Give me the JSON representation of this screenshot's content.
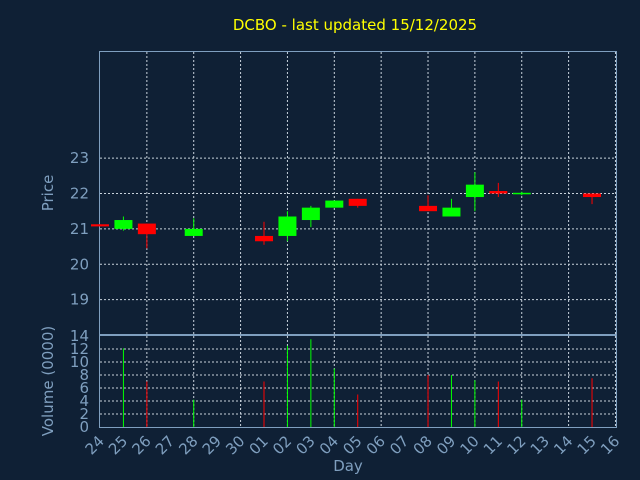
{
  "chart_data": [
    {
      "panel": "price",
      "type": "candlestick",
      "title": "DCBO - last updated 15/12/2025",
      "ylabel": "Price",
      "ylim": [
        18,
        26
      ],
      "yticks": [
        19,
        20,
        21,
        22,
        23
      ],
      "grid": true,
      "up_color": "#00ff00",
      "down_color": "#ff0000",
      "candles": [
        {
          "day": "24",
          "open": 21.13,
          "high": 21.13,
          "low": 21.07,
          "close": 21.07
        },
        {
          "day": "25",
          "open": 21.0,
          "high": 21.35,
          "low": 20.95,
          "close": 21.25
        },
        {
          "day": "26",
          "open": 21.15,
          "high": 21.15,
          "low": 20.45,
          "close": 20.85
        },
        {
          "day": "28",
          "open": 20.8,
          "high": 21.3,
          "low": 20.8,
          "close": 21.0
        },
        {
          "day": "01",
          "open": 20.8,
          "high": 21.2,
          "low": 20.55,
          "close": 20.65
        },
        {
          "day": "02",
          "open": 20.8,
          "high": 21.5,
          "low": 20.65,
          "close": 21.35
        },
        {
          "day": "03",
          "open": 21.25,
          "high": 21.65,
          "low": 21.05,
          "close": 21.6
        },
        {
          "day": "04",
          "open": 21.6,
          "high": 21.8,
          "low": 21.6,
          "close": 21.8
        },
        {
          "day": "05",
          "open": 21.85,
          "high": 21.85,
          "low": 21.6,
          "close": 21.65
        },
        {
          "day": "08",
          "open": 21.65,
          "high": 21.95,
          "low": 21.5,
          "close": 21.5
        },
        {
          "day": "09",
          "open": 21.35,
          "high": 21.85,
          "low": 21.35,
          "close": 21.6
        },
        {
          "day": "10",
          "open": 21.9,
          "high": 22.6,
          "low": 21.5,
          "close": 22.25
        },
        {
          "day": "11",
          "open": 22.07,
          "high": 22.3,
          "low": 21.9,
          "close": 22.0
        },
        {
          "day": "12",
          "open": 22.0,
          "high": 22.05,
          "low": 21.95,
          "close": 22.02
        },
        {
          "day": "15",
          "open": 22.0,
          "high": 22.0,
          "low": 21.7,
          "close": 21.9
        }
      ]
    },
    {
      "panel": "volume",
      "type": "bar",
      "ylabel": "Volume (0000)",
      "xlabel": "Day",
      "ylim": [
        0,
        14
      ],
      "yticks": [
        0,
        2,
        4,
        6,
        8,
        10,
        12,
        14
      ],
      "grid": true,
      "categories": [
        "24",
        "25",
        "26",
        "27",
        "28",
        "29",
        "30",
        "01",
        "02",
        "03",
        "04",
        "05",
        "06",
        "07",
        "08",
        "09",
        "10",
        "11",
        "12",
        "13",
        "14",
        "15",
        "16"
      ],
      "bars": [
        {
          "day": "25",
          "value": 12.1,
          "direction": "up"
        },
        {
          "day": "26",
          "value": 7.0,
          "direction": "down"
        },
        {
          "day": "28",
          "value": 4.2,
          "direction": "up"
        },
        {
          "day": "01",
          "value": 7.0,
          "direction": "down"
        },
        {
          "day": "02",
          "value": 12.5,
          "direction": "up"
        },
        {
          "day": "03",
          "value": 13.5,
          "direction": "up"
        },
        {
          "day": "04",
          "value": 9.0,
          "direction": "up"
        },
        {
          "day": "05",
          "value": 5.0,
          "direction": "down"
        },
        {
          "day": "08",
          "value": 8.0,
          "direction": "down"
        },
        {
          "day": "09",
          "value": 8.0,
          "direction": "up"
        },
        {
          "day": "10",
          "value": 7.2,
          "direction": "up"
        },
        {
          "day": "11",
          "value": 7.0,
          "direction": "down"
        },
        {
          "day": "12",
          "value": 4.2,
          "direction": "up"
        },
        {
          "day": "15",
          "value": 7.5,
          "direction": "down"
        }
      ]
    }
  ]
}
